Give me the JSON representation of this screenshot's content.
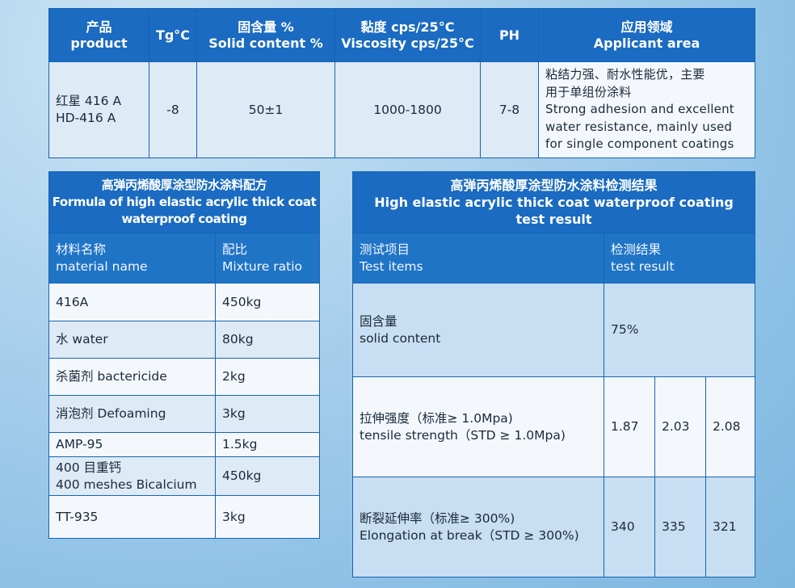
{
  "spec_table": {
    "headers": {
      "product": [
        "产品",
        "product"
      ],
      "tg": "Tg°C",
      "solid": [
        "固含量 %",
        "Solid content %"
      ],
      "viscosity": [
        "黏度 cps/25°C",
        "Viscosity cps/25°C"
      ],
      "ph": "PH",
      "area": [
        "应用领域",
        "Applicant area"
      ]
    },
    "row": {
      "product": [
        "红星 416 A",
        "HD-416 A"
      ],
      "tg": "-8",
      "solid": "50±1",
      "viscosity": "1000-1800",
      "ph": "7-8",
      "area": [
        "粘结力强、耐水性能优，主要",
        "用于单组份涂料",
        "Strong adhesion and excellent",
        "water resistance, mainly used",
        "for single component coatings"
      ]
    }
  },
  "formula_table": {
    "title": [
      "高弹丙烯酸厚涂型防水涂料配方",
      "Formula of high elastic acrylic thick coat",
      "waterproof coating"
    ],
    "col_material": [
      "材料名称",
      "material name"
    ],
    "col_ratio": [
      "配比",
      "Mixture ratio"
    ],
    "rows": [
      {
        "material": [
          "416A"
        ],
        "ratio": "450kg"
      },
      {
        "material": [
          "水 water"
        ],
        "ratio": "80kg"
      },
      {
        "material": [
          "杀菌剂 bactericide"
        ],
        "ratio": "2kg"
      },
      {
        "material": [
          "消泡剂 Defoaming"
        ],
        "ratio": "3kg"
      },
      {
        "material": [
          "AMP-95"
        ],
        "ratio": "1.5kg"
      },
      {
        "material": [
          "400 目重钙",
          "400 meshes Bicalcium"
        ],
        "ratio": "450kg"
      },
      {
        "material": [
          "TT-935"
        ],
        "ratio": "3kg"
      }
    ]
  },
  "test_table": {
    "title": [
      "高弹丙烯酸厚涂型防水涂料检测结果",
      "High elastic acrylic thick coat waterproof coating",
      "test result"
    ],
    "col_item": [
      "测试项目",
      "Test items"
    ],
    "col_result": [
      "检测结果",
      "test result"
    ],
    "rows": [
      {
        "item": [
          "固含量",
          "solid content"
        ],
        "results": [
          "75%"
        ]
      },
      {
        "item": [
          "拉伸强度（标准≥ 1.0Mpa)",
          "tensile strength（STD ≥ 1.0Mpa)"
        ],
        "results": [
          "1.87",
          "2.03",
          "2.08"
        ]
      },
      {
        "item": [
          "断裂延伸率（标准≥ 300%)",
          "Elongation at break（STD ≥ 300%)"
        ],
        "results": [
          "340",
          "335",
          "321"
        ]
      }
    ]
  }
}
